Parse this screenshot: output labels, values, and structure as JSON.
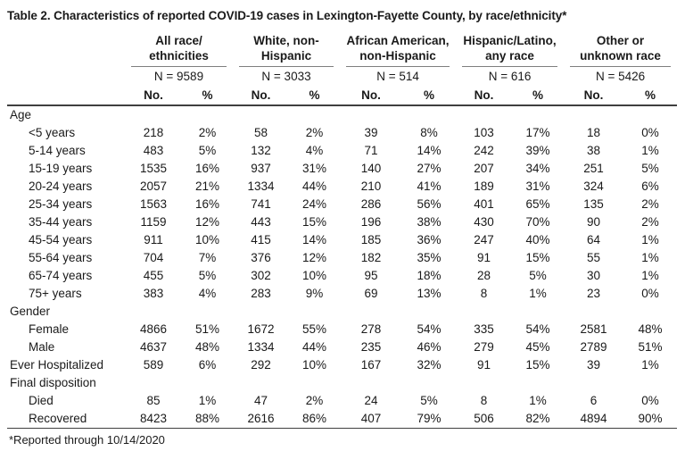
{
  "title": "Table 2. Characteristics of reported COVID-19 cases in Lexington-Fayette County, by race/ethnicity*",
  "footnote": "*Reported through 10/14/2020",
  "table": {
    "groups": [
      {
        "label": "All race/\nethnicities",
        "n": "N = 9589"
      },
      {
        "label": "White, non-\nHispanic",
        "n": "N = 3033"
      },
      {
        "label": "African American,\nnon-Hispanic",
        "n": "N = 514"
      },
      {
        "label": "Hispanic/Latino,\nany race",
        "n": "N = 616"
      },
      {
        "label": "Other or\nunknown race",
        "n": "N = 5426"
      }
    ],
    "sub_columns": [
      "No.",
      "%"
    ],
    "rows": [
      {
        "type": "section",
        "label": "Age"
      },
      {
        "type": "data",
        "indent": true,
        "label": "<5 years",
        "values": [
          "218",
          "2%",
          "58",
          "2%",
          "39",
          "8%",
          "103",
          "17%",
          "18",
          "0%"
        ]
      },
      {
        "type": "data",
        "indent": true,
        "label": "5-14 years",
        "values": [
          "483",
          "5%",
          "132",
          "4%",
          "71",
          "14%",
          "242",
          "39%",
          "38",
          "1%"
        ]
      },
      {
        "type": "data",
        "indent": true,
        "label": "15-19 years",
        "values": [
          "1535",
          "16%",
          "937",
          "31%",
          "140",
          "27%",
          "207",
          "34%",
          "251",
          "5%"
        ]
      },
      {
        "type": "data",
        "indent": true,
        "label": "20-24 years",
        "values": [
          "2057",
          "21%",
          "1334",
          "44%",
          "210",
          "41%",
          "189",
          "31%",
          "324",
          "6%"
        ]
      },
      {
        "type": "data",
        "indent": true,
        "label": "25-34 years",
        "values": [
          "1563",
          "16%",
          "741",
          "24%",
          "286",
          "56%",
          "401",
          "65%",
          "135",
          "2%"
        ]
      },
      {
        "type": "data",
        "indent": true,
        "label": "35-44 years",
        "values": [
          "1159",
          "12%",
          "443",
          "15%",
          "196",
          "38%",
          "430",
          "70%",
          "90",
          "2%"
        ]
      },
      {
        "type": "data",
        "indent": true,
        "label": "45-54 years",
        "values": [
          "911",
          "10%",
          "415",
          "14%",
          "185",
          "36%",
          "247",
          "40%",
          "64",
          "1%"
        ]
      },
      {
        "type": "data",
        "indent": true,
        "label": "55-64 years",
        "values": [
          "704",
          "7%",
          "376",
          "12%",
          "182",
          "35%",
          "91",
          "15%",
          "55",
          "1%"
        ]
      },
      {
        "type": "data",
        "indent": true,
        "label": "65-74 years",
        "values": [
          "455",
          "5%",
          "302",
          "10%",
          "95",
          "18%",
          "28",
          "5%",
          "30",
          "1%"
        ]
      },
      {
        "type": "data",
        "indent": true,
        "label": "75+ years",
        "values": [
          "383",
          "4%",
          "283",
          "9%",
          "69",
          "13%",
          "8",
          "1%",
          "23",
          "0%"
        ]
      },
      {
        "type": "section",
        "label": "Gender"
      },
      {
        "type": "data",
        "indent": true,
        "label": "Female",
        "values": [
          "4866",
          "51%",
          "1672",
          "55%",
          "278",
          "54%",
          "335",
          "54%",
          "2581",
          "48%"
        ]
      },
      {
        "type": "data",
        "indent": true,
        "label": "Male",
        "values": [
          "4637",
          "48%",
          "1334",
          "44%",
          "235",
          "46%",
          "279",
          "45%",
          "2789",
          "51%"
        ]
      },
      {
        "type": "data",
        "indent": false,
        "label": "Ever Hospitalized",
        "values": [
          "589",
          "6%",
          "292",
          "10%",
          "167",
          "32%",
          "91",
          "15%",
          "39",
          "1%"
        ]
      },
      {
        "type": "section",
        "label": "Final disposition"
      },
      {
        "type": "data",
        "indent": true,
        "label": "Died",
        "values": [
          "85",
          "1%",
          "47",
          "2%",
          "24",
          "5%",
          "8",
          "1%",
          "6",
          "0%"
        ]
      },
      {
        "type": "data",
        "indent": true,
        "label": "Recovered",
        "values": [
          "8423",
          "88%",
          "2616",
          "86%",
          "407",
          "79%",
          "506",
          "82%",
          "4894",
          "90%"
        ]
      }
    ]
  }
}
